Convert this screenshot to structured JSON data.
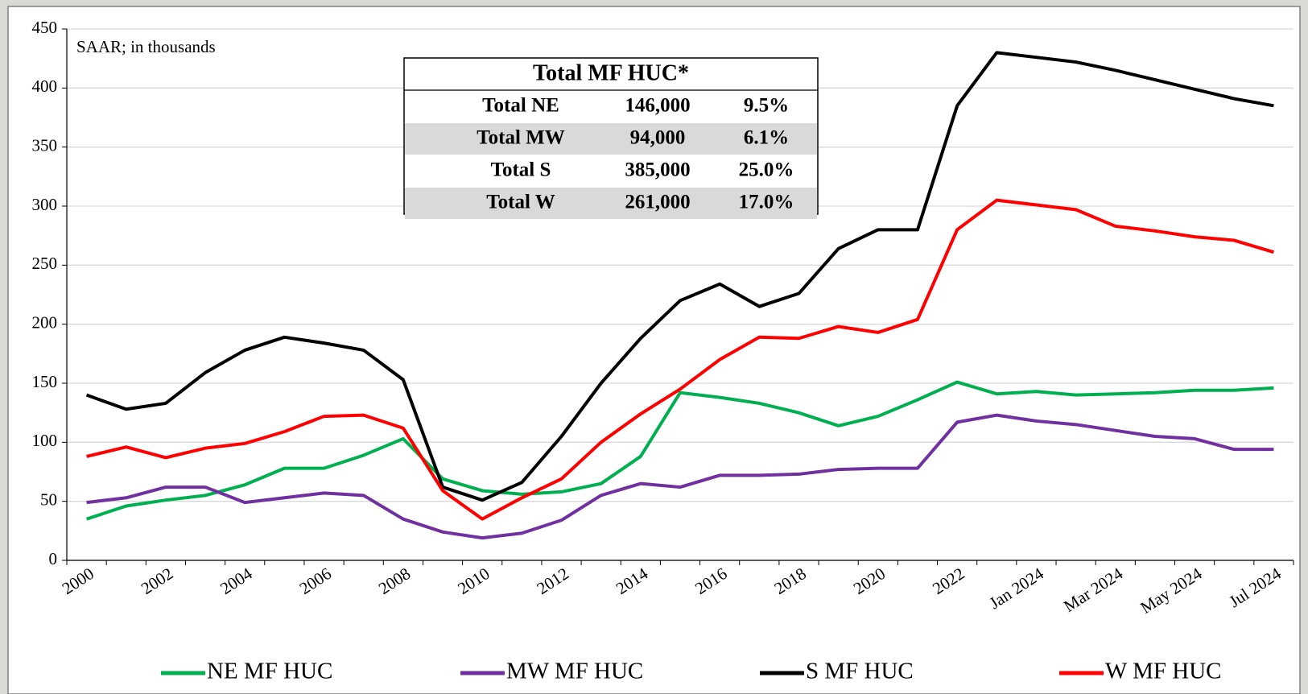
{
  "chart_data": {
    "type": "line",
    "annotation": "SAAR; in thousands",
    "categories": [
      "2000",
      null,
      "2002",
      null,
      "2004",
      null,
      "2006",
      null,
      "2008",
      null,
      "2010",
      null,
      "2012",
      null,
      "2014",
      null,
      "2016",
      null,
      "2018",
      null,
      "2020",
      null,
      "2022",
      null,
      "Jan 2024",
      null,
      "Mar 2024",
      null,
      "May 2024",
      null,
      "Jul 2024"
    ],
    "series": [
      {
        "name": "NE MF HUC",
        "color": "#00b050",
        "values": [
          35,
          46,
          51,
          55,
          64,
          78,
          78,
          89,
          103,
          69,
          59,
          56,
          58,
          65,
          88,
          142,
          138,
          133,
          125,
          114,
          122,
          136,
          151,
          141,
          143,
          140,
          141,
          142,
          144,
          144,
          146
        ]
      },
      {
        "name": "MW MF HUC",
        "color": "#7030a0",
        "values": [
          49,
          53,
          62,
          62,
          49,
          53,
          57,
          55,
          35,
          24,
          19,
          23,
          34,
          55,
          65,
          62,
          72,
          72,
          73,
          77,
          78,
          78,
          117,
          123,
          118,
          115,
          110,
          105,
          103,
          94,
          94
        ]
      },
      {
        "name": "S MF HUC",
        "color": "#000000",
        "values": [
          140,
          128,
          133,
          159,
          178,
          189,
          184,
          178,
          153,
          62,
          51,
          66,
          105,
          150,
          188,
          220,
          234,
          215,
          226,
          264,
          280,
          280,
          385,
          430,
          426,
          422,
          415,
          407,
          399,
          391,
          385
        ]
      },
      {
        "name": "W MF HUC",
        "color": "#ff0000",
        "values": [
          88,
          96,
          87,
          95,
          99,
          109,
          122,
          123,
          112,
          59,
          35,
          53,
          69,
          100,
          124,
          145,
          170,
          189,
          188,
          198,
          193,
          204,
          280,
          305,
          301,
          297,
          283,
          279,
          274,
          271,
          261
        ]
      }
    ],
    "ylim": [
      0,
      450
    ],
    "yticks": [
      0,
      50,
      100,
      150,
      200,
      250,
      300,
      350,
      400,
      450
    ],
    "grid": true,
    "table": {
      "title": "Total MF HUC*",
      "rows": [
        [
          "Total NE",
          "146,000",
          "9.5%"
        ],
        [
          "Total MW",
          "94,000",
          "6.1%"
        ],
        [
          "Total S",
          "385,000",
          "25.0%"
        ],
        [
          "Total W",
          "261,000",
          "17.0%"
        ]
      ]
    }
  }
}
